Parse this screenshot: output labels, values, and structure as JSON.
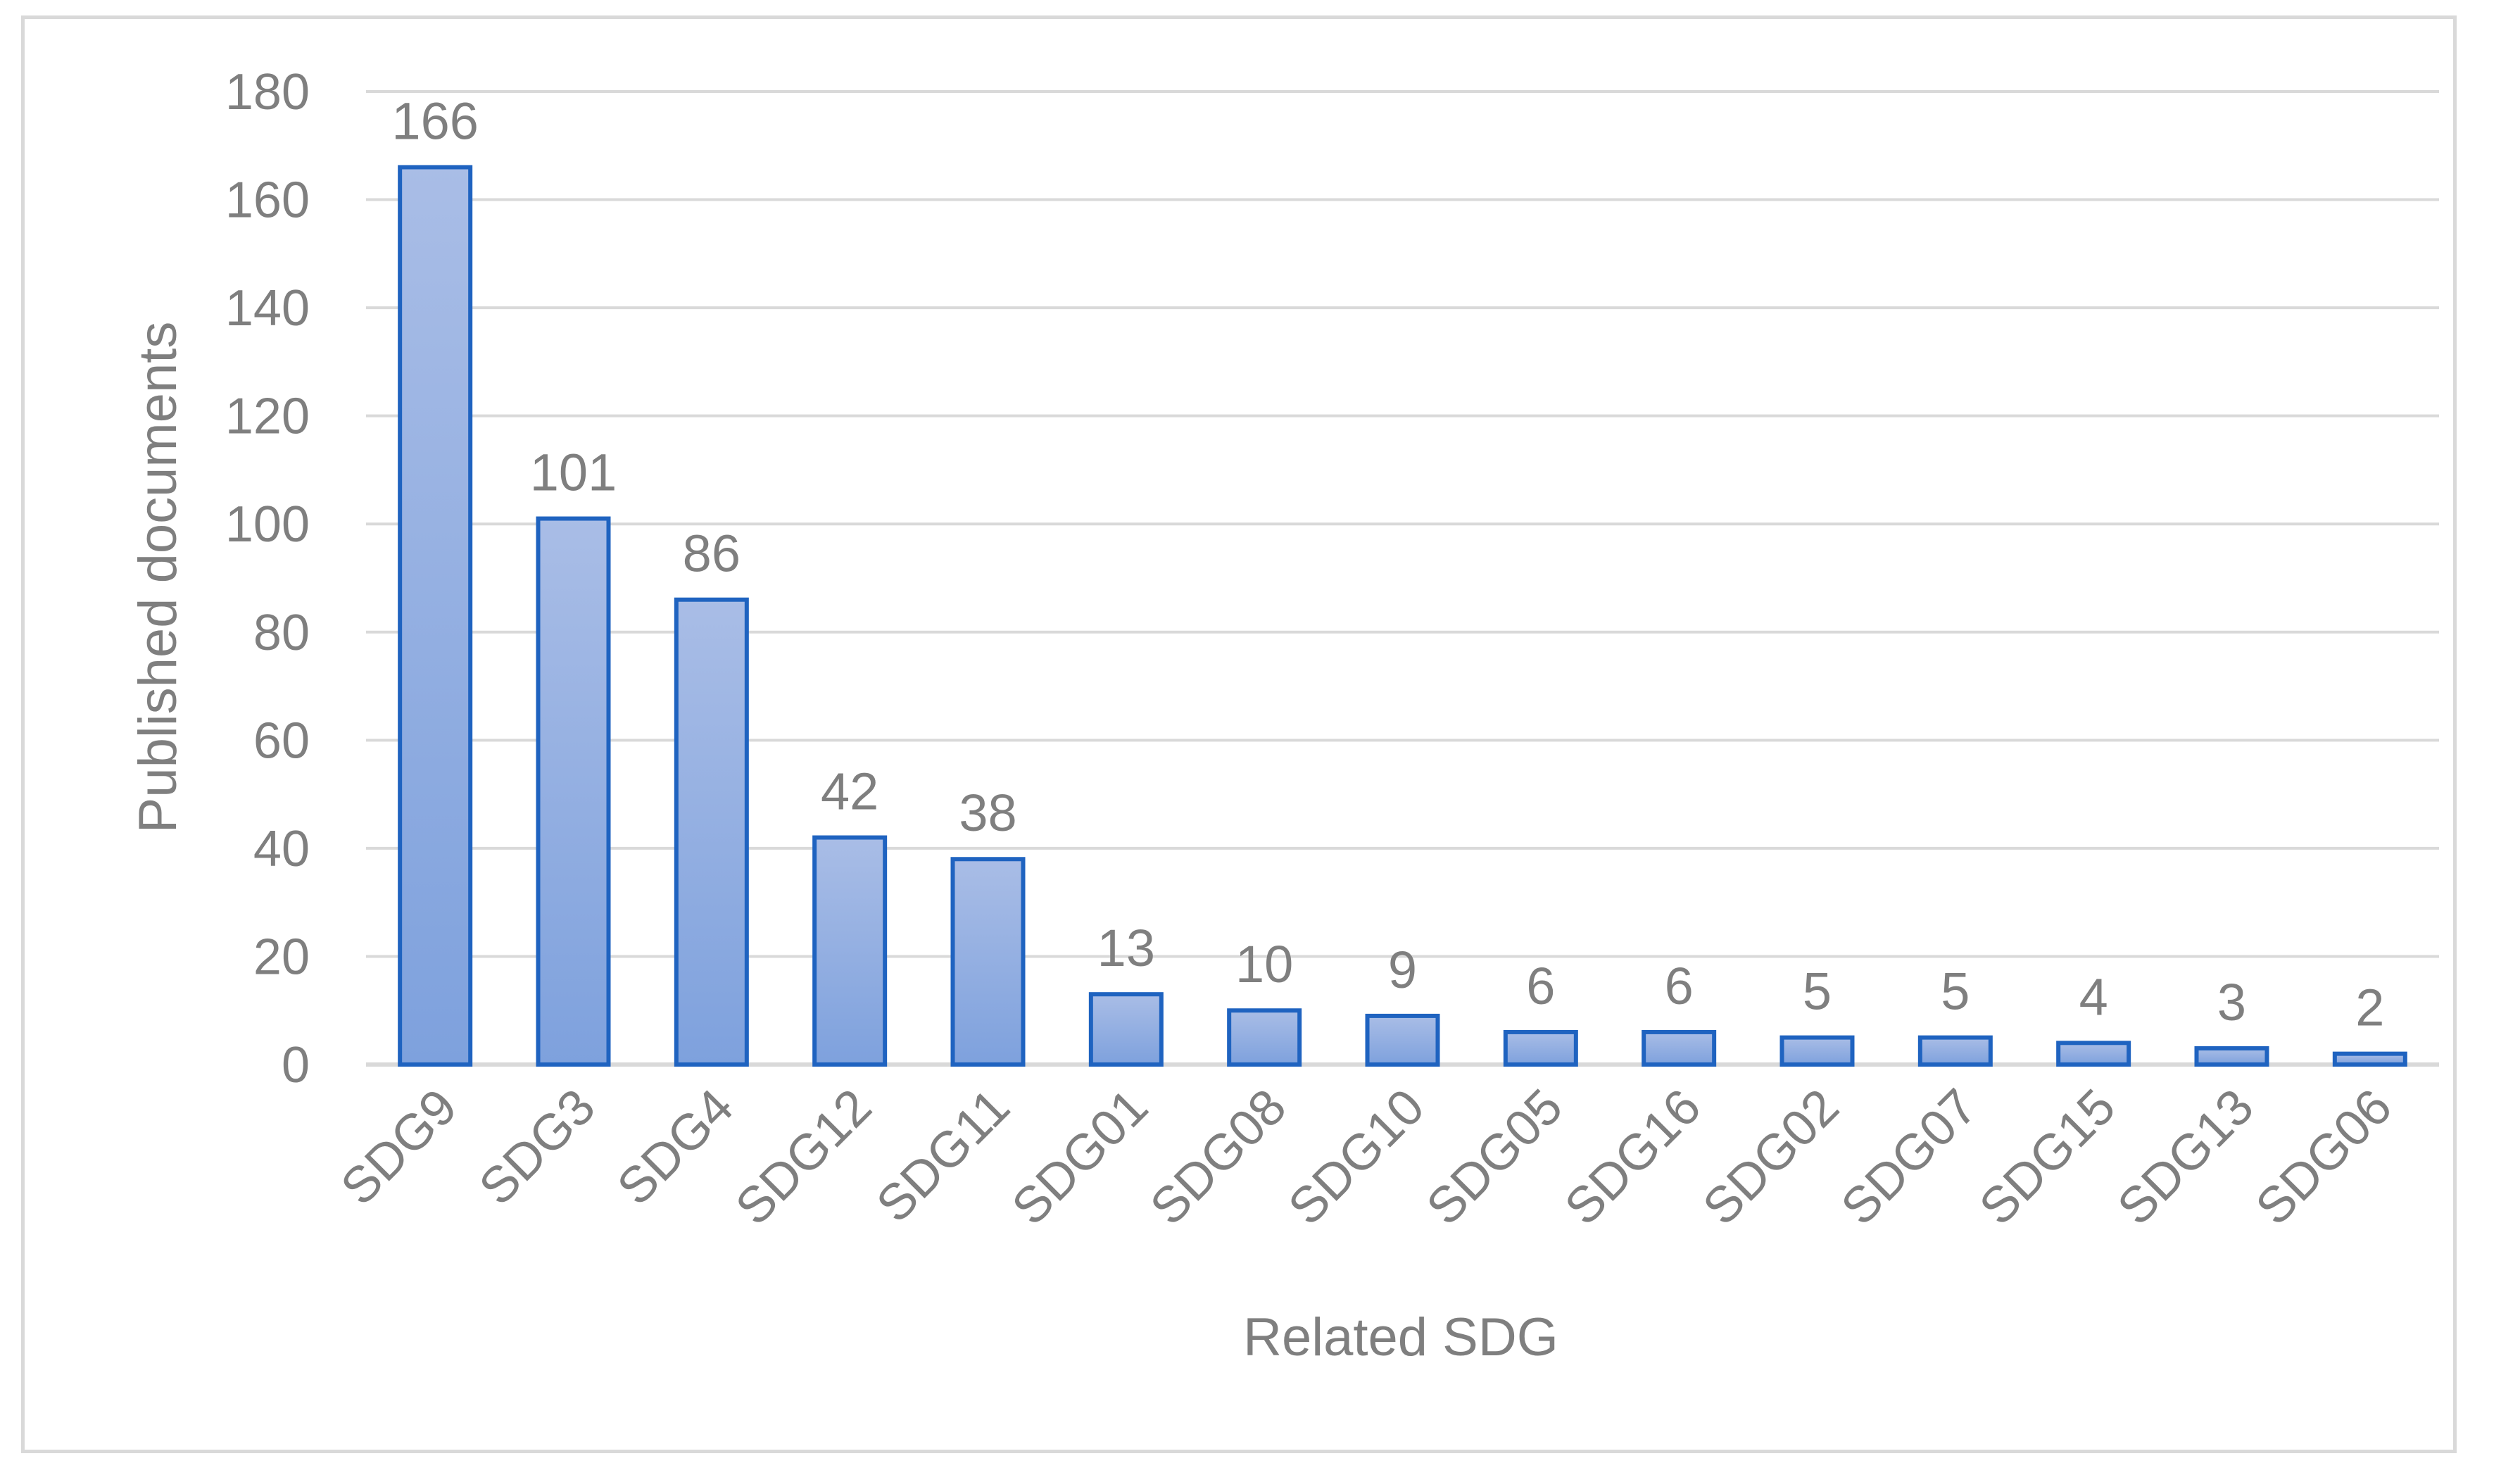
{
  "chart_data": {
    "type": "bar",
    "title": "",
    "xlabel": "Related SDG",
    "ylabel": "Published documents",
    "ylim": [
      0,
      180
    ],
    "yticks": [
      0,
      20,
      40,
      60,
      80,
      100,
      120,
      140,
      160,
      180
    ],
    "grid": true,
    "categories": [
      "SDG9",
      "SDG3",
      "SDG4",
      "SDG12",
      "SDG11",
      "SDG01",
      "SDG08",
      "SDG10",
      "SDG05",
      "SDG16",
      "SDG02",
      "SDG07",
      "SDG15",
      "SDG13",
      "SDG06"
    ],
    "values": [
      166,
      101,
      86,
      42,
      38,
      13,
      10,
      9,
      6,
      6,
      5,
      5,
      4,
      3,
      2
    ],
    "colors": {
      "bar_fill_top": "#a9bde6",
      "bar_fill_bottom": "#7ea1dd",
      "bar_stroke": "#1f63c0",
      "grid": "#d9d9d9",
      "text": "#7f7f7f"
    }
  }
}
